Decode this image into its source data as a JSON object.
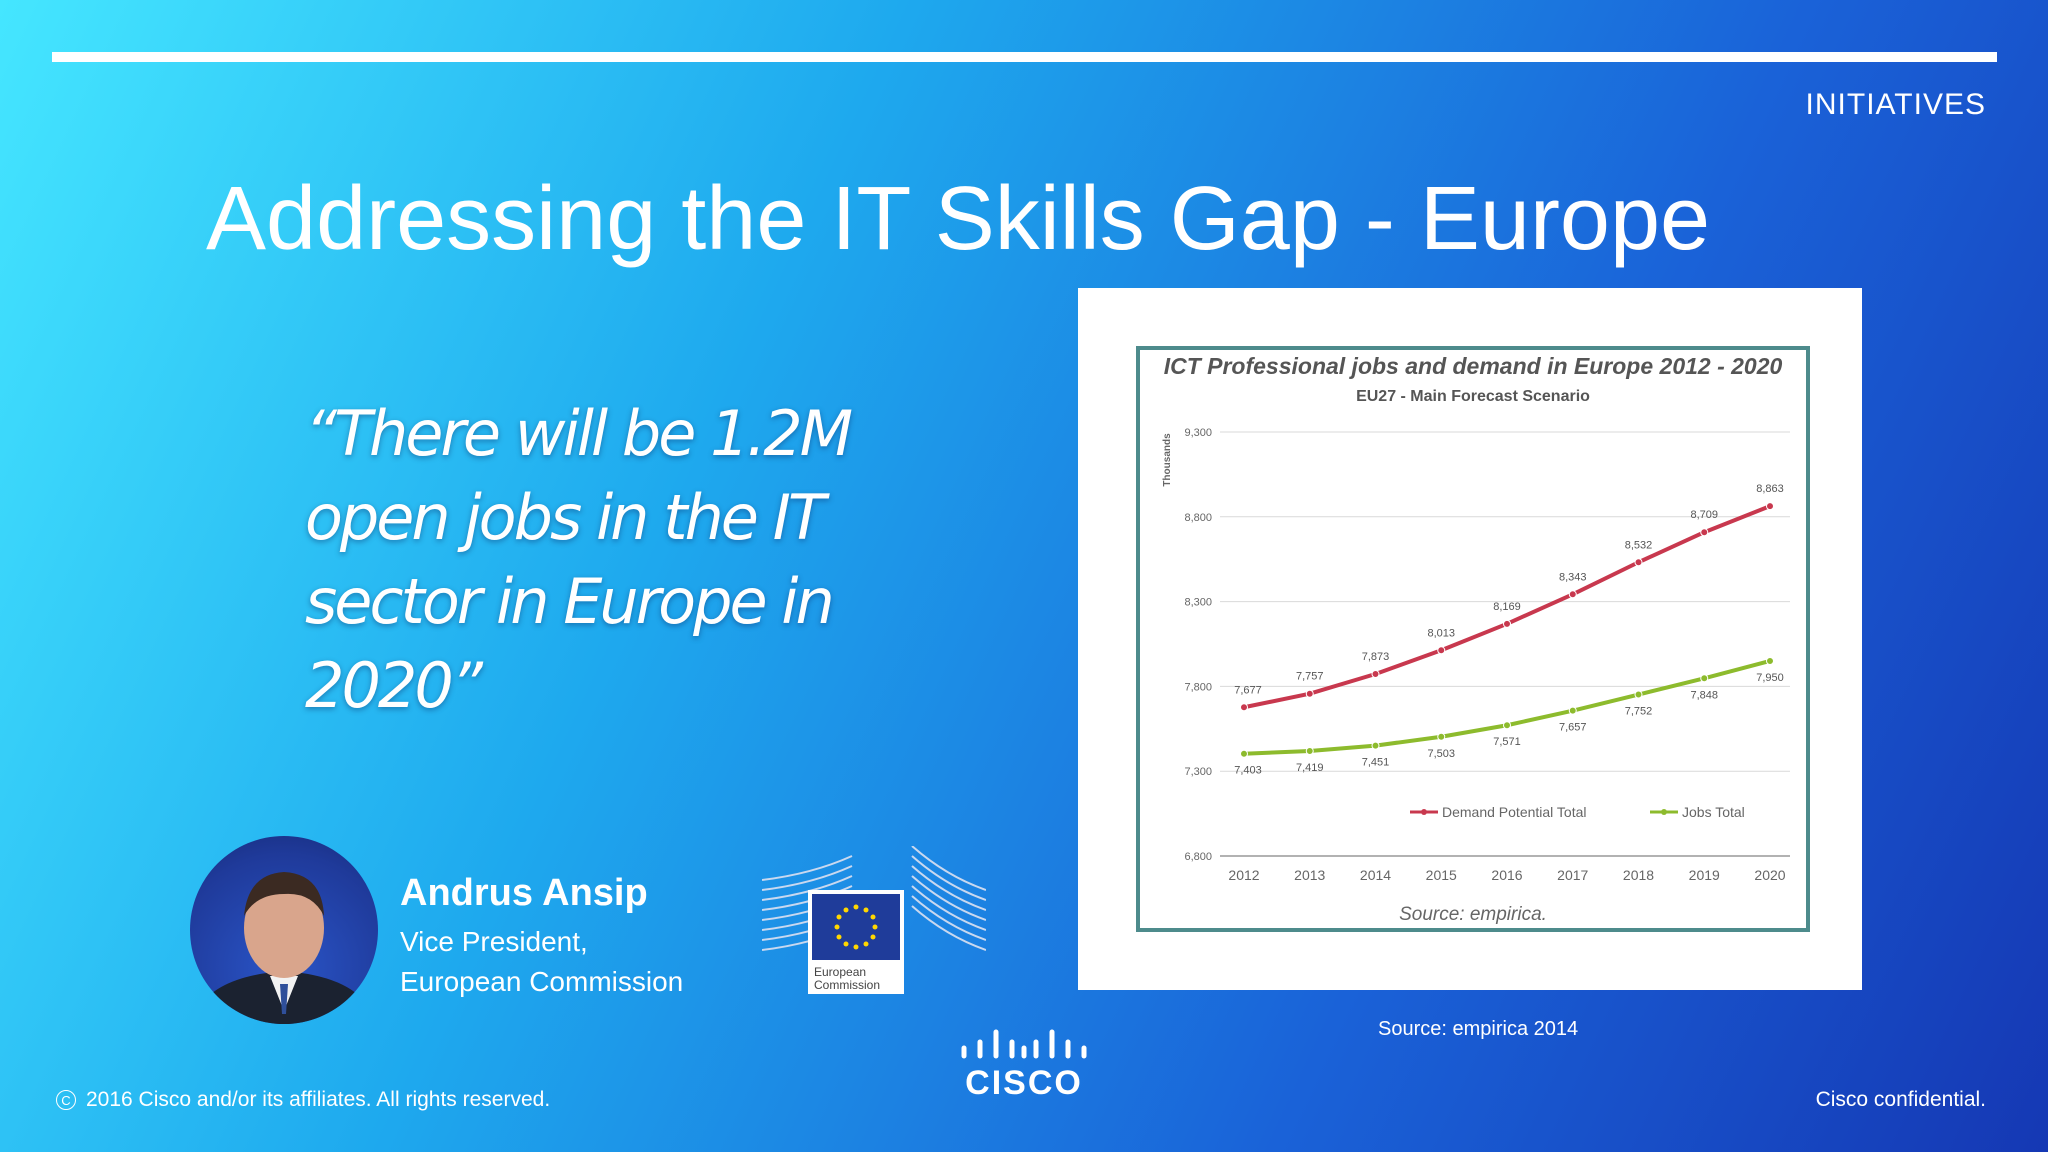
{
  "header": {
    "section": "INITIATIVES",
    "title": "Addressing the IT Skills Gap - Europe"
  },
  "quote": "“There will be 1.2M open jobs in the IT sector in Europe in 2020”",
  "speaker": {
    "name": "Andrus Ansip",
    "role_line1": "Vice President,",
    "role_line2": "European Commission"
  },
  "ec_logo": {
    "text_line1": "European",
    "text_line2": "Commission"
  },
  "source_note": {
    "label": "Source:",
    "value": "empirica 2014"
  },
  "footer": {
    "copyright": "2016 Cisco and/or its affiliates. All rights reserved.",
    "confidential": "Cisco confidential."
  },
  "brand": {
    "logo_text": "CISCO",
    "background_start": "#45e6ff",
    "background_end": "#1538b4"
  },
  "chart_data": {
    "type": "line",
    "title": "ICT Professional jobs and demand in Europe 2012 - 2020",
    "subtitle": "EU27 - Main Forecast Scenario",
    "ylabel": "Thousands",
    "source": "Source: empirica.",
    "categories": [
      "2012",
      "2013",
      "2014",
      "2015",
      "2016",
      "2017",
      "2018",
      "2019",
      "2020"
    ],
    "y_ticks": [
      "6,800",
      "7,300",
      "7,800",
      "8,300",
      "8,800",
      "9,300"
    ],
    "ylim": [
      6800,
      9300
    ],
    "legend_position": "bottom",
    "grid": true,
    "series": [
      {
        "name": "Demand Potential Total",
        "color": "#c8384e",
        "values": [
          7677,
          7757,
          7873,
          8013,
          8169,
          8343,
          8532,
          8709,
          8863
        ],
        "labels": [
          "7,677",
          "7,757",
          "7,873",
          "8,013",
          "8,169",
          "8,343",
          "8,532",
          "8,709",
          "8,863"
        ]
      },
      {
        "name": "Jobs Total",
        "color": "#8dbb2d",
        "values": [
          7403,
          7419,
          7451,
          7503,
          7571,
          7657,
          7752,
          7848,
          7950
        ],
        "labels": [
          "7,403",
          "7,419",
          "7,451",
          "7,503",
          "7,571",
          "7,657",
          "7,752",
          "7,848",
          "7,950"
        ]
      }
    ]
  }
}
